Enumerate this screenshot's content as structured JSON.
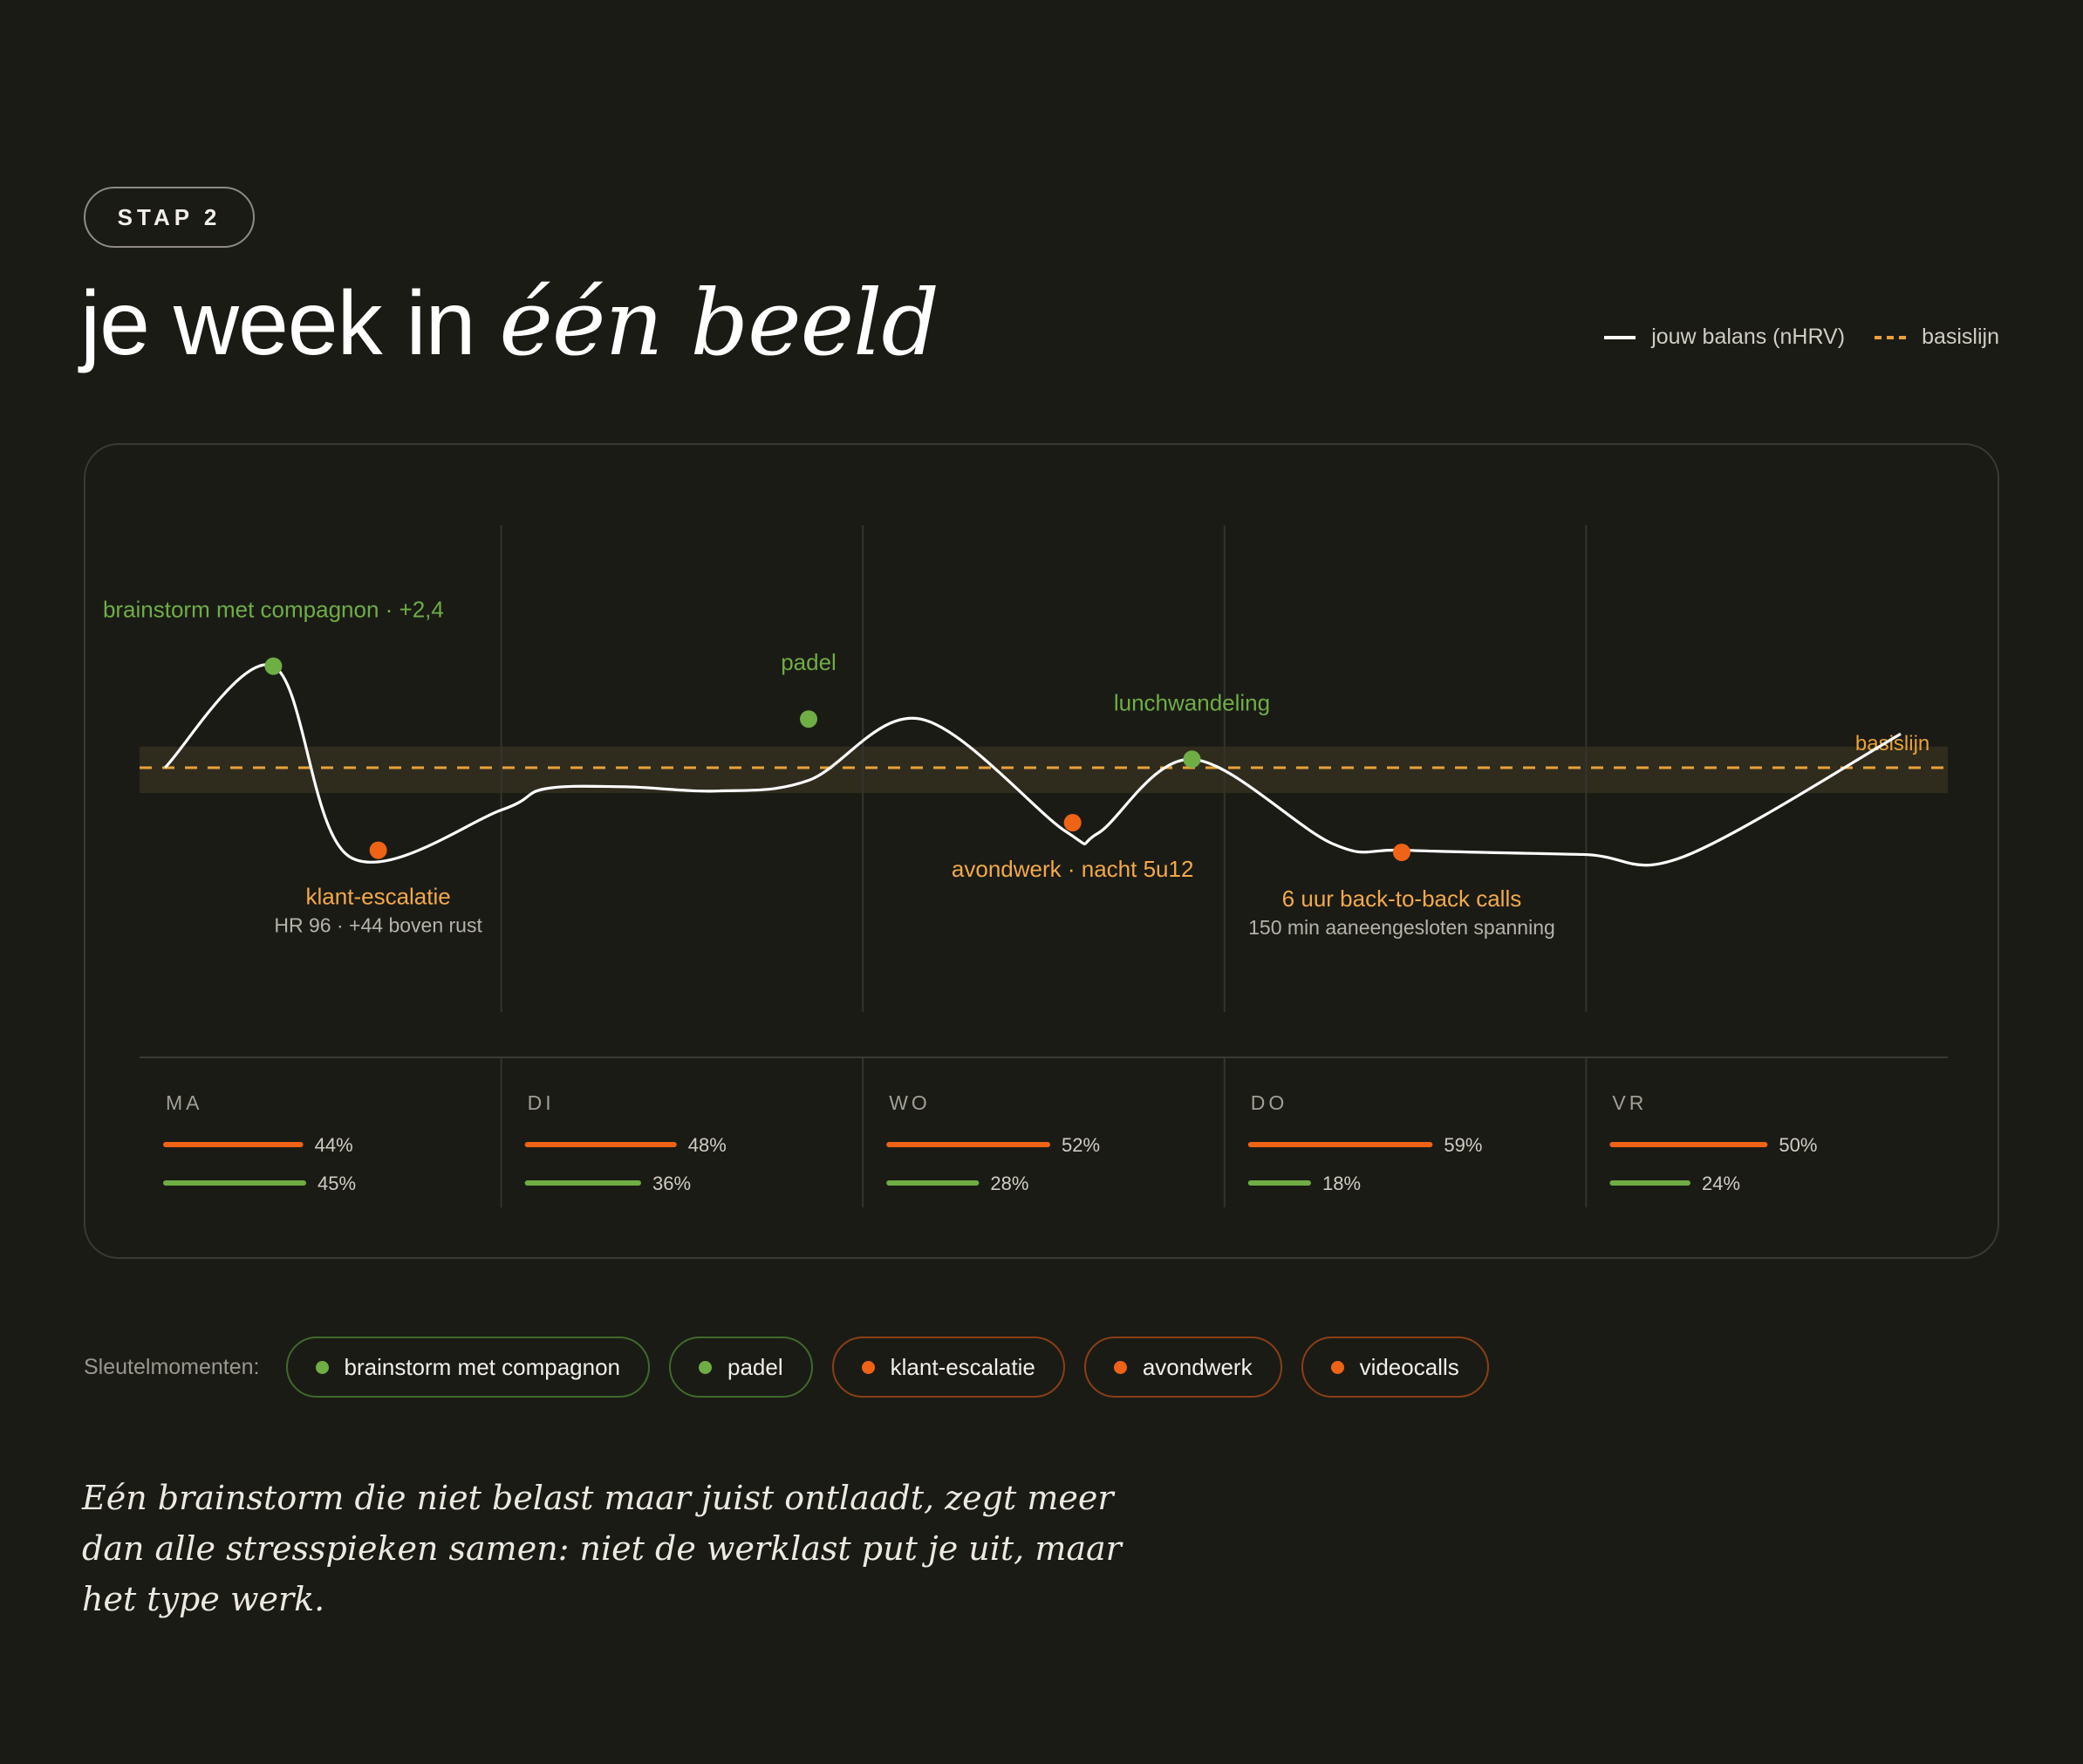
{
  "header": {
    "step_label": "STAP 2",
    "title_plain": "je week in ",
    "title_emphasis": "één beeld"
  },
  "legend": {
    "line_label": "jouw balans (nHRV)",
    "baseline_label": "basislijn"
  },
  "colors": {
    "background": "#1b1b16",
    "line": "#ffffff",
    "baseline": "#e8a23a",
    "positive": "#6fad45",
    "negative": "#ee6316",
    "negative_label": "#f2a94a"
  },
  "chart_data": {
    "type": "line",
    "x_range": [
      0,
      5
    ],
    "y_range": [
      -3,
      3
    ],
    "baseline_value": 0,
    "baseline_label": "basislijn",
    "days": [
      "MA",
      "DI",
      "WO",
      "DO",
      "VR"
    ],
    "series": [
      {
        "points": [
          [
            0.07,
            0.0
          ],
          [
            0.37,
            2.4
          ],
          [
            0.58,
            -2.1
          ],
          [
            1.0,
            -1.0
          ],
          [
            1.12,
            -0.5
          ],
          [
            1.34,
            -0.45
          ],
          [
            1.6,
            -0.55
          ],
          [
            1.85,
            -0.3
          ],
          [
            2.16,
            1.15
          ],
          [
            2.56,
            -1.5
          ],
          [
            2.65,
            -1.55
          ],
          [
            2.91,
            0.2
          ],
          [
            3.3,
            -1.8
          ],
          [
            3.5,
            -1.95
          ],
          [
            3.99,
            -2.05
          ],
          [
            4.27,
            -2.1
          ],
          [
            4.87,
            0.8
          ]
        ]
      }
    ],
    "events": [
      {
        "x": 0.37,
        "y": 2.4,
        "kind": "positive",
        "label": "brainstorm met compagnon · +2,4",
        "sublabel": ""
      },
      {
        "x": 1.85,
        "y": 1.15,
        "kind": "positive",
        "label": "padel",
        "sublabel": ""
      },
      {
        "x": 2.91,
        "y": 0.2,
        "kind": "positive",
        "label": "lunchwandeling",
        "sublabel": ""
      },
      {
        "x": 0.66,
        "y": -1.95,
        "kind": "negative",
        "label": "klant-escalatie",
        "sublabel": "HR 96 · +44 boven rust"
      },
      {
        "x": 2.58,
        "y": -1.3,
        "kind": "negative",
        "label": "avondwerk · nacht 5u12",
        "sublabel": ""
      },
      {
        "x": 3.49,
        "y": -2.0,
        "kind": "negative",
        "label": "6 uur back-to-back calls",
        "sublabel": "150 min aaneengesloten spanning"
      }
    ],
    "day_stats": [
      {
        "day": "MA",
        "orange": 44,
        "green": 45
      },
      {
        "day": "DI",
        "orange": 48,
        "green": 36
      },
      {
        "day": "WO",
        "orange": 52,
        "green": 28
      },
      {
        "day": "DO",
        "orange": 59,
        "green": 18
      },
      {
        "day": "VR",
        "orange": 50,
        "green": 24
      }
    ]
  },
  "moments": {
    "label": "Sleutelmomenten:",
    "chips": [
      {
        "label": "brainstorm met compagnon",
        "kind": "pos"
      },
      {
        "label": "padel",
        "kind": "pos"
      },
      {
        "label": "klant-escalatie",
        "kind": "neg"
      },
      {
        "label": "avondwerk",
        "kind": "neg"
      },
      {
        "label": "videocalls",
        "kind": "neg"
      }
    ]
  },
  "quote": "Eén brainstorm die niet belast maar juist ontlaadt, zegt meer dan alle stresspieken samen: niet de werklast put je uit, maar het type werk."
}
